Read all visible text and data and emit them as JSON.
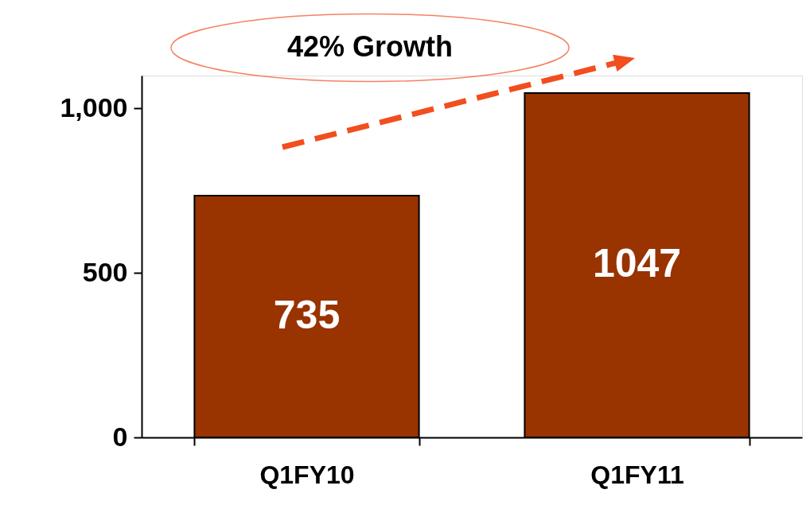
{
  "chart_data": {
    "type": "bar",
    "categories": [
      "Q1FY10",
      "Q1FY11"
    ],
    "values": [
      735,
      1047
    ],
    "color": "#993300",
    "ylim": [
      0,
      1100
    ],
    "yticks": [
      0,
      500,
      {
        "value": 1000,
        "label": "1,000"
      }
    ],
    "data_labels": true,
    "grid": false,
    "annotations": [
      "42% Growth"
    ]
  }
}
